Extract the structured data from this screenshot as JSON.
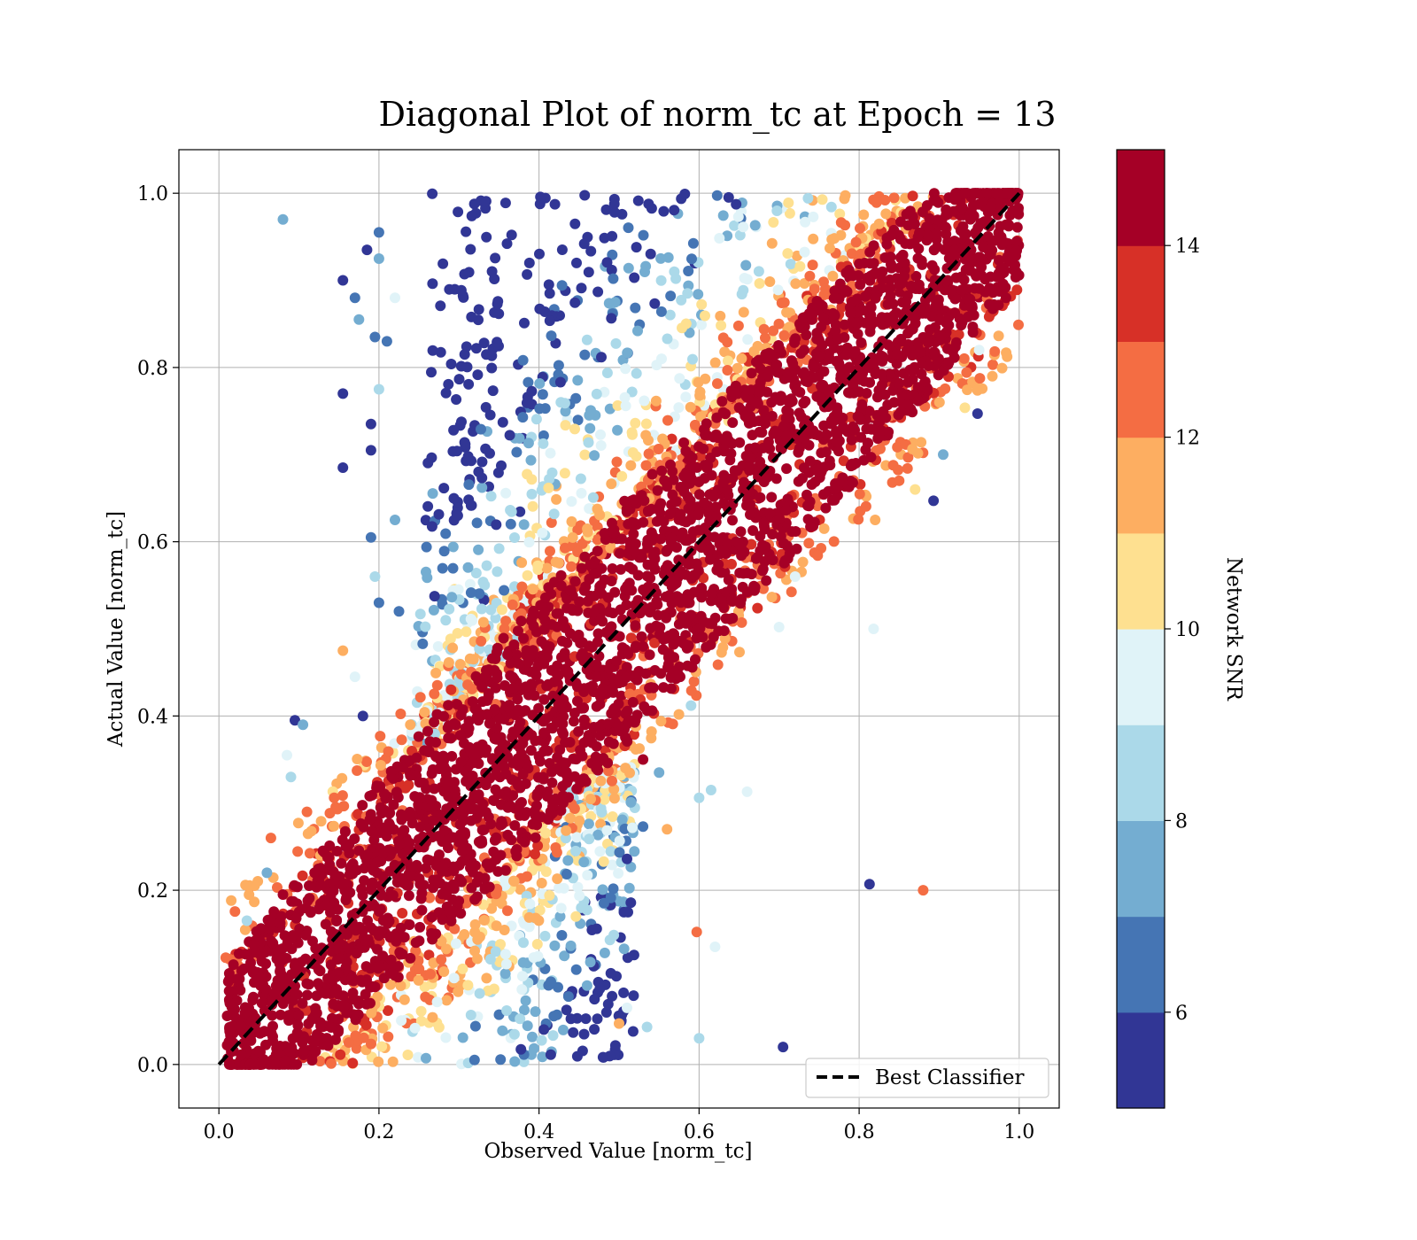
{
  "chart_data": {
    "type": "scatter",
    "title": "Diagonal Plot of norm_tc at Epoch = 13",
    "xlabel": "Observed Value [norm_tc]",
    "ylabel": "Actual Value [norm_tc]",
    "xlim": [
      -0.05,
      1.05
    ],
    "ylim": [
      -0.05,
      1.05
    ],
    "x_ticks": [
      "0.0",
      "0.2",
      "0.4",
      "0.6",
      "0.8",
      "1.0"
    ],
    "y_ticks": [
      "0.0",
      "0.2",
      "0.4",
      "0.6",
      "0.8",
      "1.0"
    ],
    "grid": true,
    "reference_line": {
      "label": "Best Classifier",
      "style": "dashed",
      "color": "#000000",
      "from": [
        0,
        0
      ],
      "to": [
        1,
        1
      ]
    },
    "legend": {
      "position": "lower-right",
      "entries": [
        "Best Classifier"
      ]
    },
    "colorbar": {
      "label": "Network SNR",
      "range": [
        5,
        15
      ],
      "ticks": [
        "6",
        "8",
        "10",
        "12",
        "14"
      ],
      "colors": [
        "#313695",
        "#4575b4",
        "#74add1",
        "#abd9e9",
        "#e0f3f8",
        "#fee090",
        "#fdae61",
        "#f46d43",
        "#d73027",
        "#a50026"
      ]
    },
    "points_description_note": "",
    "band": {
      "half_width_high_snr": 0.12,
      "x_min_low_snr": 0.25,
      "x_max_low_snr": 0.5
    },
    "outliers": [
      [
        0.08,
        0.97,
        7
      ],
      [
        0.17,
        0.88,
        6
      ],
      [
        0.155,
        0.9,
        5
      ],
      [
        0.155,
        0.77,
        5
      ],
      [
        0.155,
        0.685,
        5
      ],
      [
        0.19,
        0.735,
        5
      ],
      [
        0.19,
        0.705,
        5
      ],
      [
        0.21,
        0.83,
        6
      ],
      [
        0.2,
        0.775,
        8
      ],
      [
        0.095,
        0.395,
        5
      ],
      [
        0.105,
        0.39,
        7
      ],
      [
        0.09,
        0.33,
        8
      ],
      [
        0.085,
        0.355,
        9
      ],
      [
        0.11,
        0.29,
        12
      ],
      [
        0.065,
        0.26,
        12
      ],
      [
        0.155,
        0.475,
        11
      ],
      [
        0.17,
        0.445,
        9
      ],
      [
        0.06,
        0.22,
        7
      ],
      [
        0.08,
        0.195,
        14
      ],
      [
        0.035,
        0.165,
        8
      ],
      [
        0.948,
        0.747,
        5
      ],
      [
        0.893,
        0.647,
        5
      ],
      [
        0.87,
        0.66,
        10
      ],
      [
        0.88,
        0.2,
        12
      ],
      [
        0.813,
        0.207,
        5
      ],
      [
        0.705,
        0.02,
        5
      ],
      [
        0.6,
        0.03,
        8
      ],
      [
        0.597,
        0.152,
        12
      ],
      [
        0.62,
        0.135,
        9
      ],
      [
        0.535,
        0.043,
        8
      ],
      [
        0.6,
        0.306,
        8
      ],
      [
        0.615,
        0.315,
        8
      ],
      [
        0.66,
        0.313,
        9
      ],
      [
        0.818,
        0.5,
        9
      ],
      [
        0.72,
        0.56,
        9
      ],
      [
        0.56,
        0.27,
        11
      ],
      [
        0.53,
        0.273,
        6
      ],
      [
        0.55,
        0.335,
        7
      ],
      [
        0.53,
        0.35,
        14
      ],
      [
        0.51,
        0.236,
        5
      ],
      [
        0.51,
        0.065,
        9
      ],
      [
        0.5,
        0.047,
        11
      ],
      [
        0.59,
        0.412,
        8
      ],
      [
        0.7,
        0.502,
        9
      ],
      [
        0.905,
        0.7,
        7
      ],
      [
        0.95,
        0.82,
        9
      ],
      [
        0.82,
        0.625,
        11
      ],
      [
        0.85,
        0.67,
        12
      ],
      [
        0.22,
        0.88,
        9
      ],
      [
        0.2,
        0.955,
        6
      ],
      [
        0.2,
        0.925,
        7
      ],
      [
        0.185,
        0.935,
        5
      ],
      [
        0.175,
        0.855,
        7
      ],
      [
        0.195,
        0.835,
        6
      ],
      [
        0.2,
        0.53,
        6
      ],
      [
        0.195,
        0.56,
        8
      ],
      [
        0.19,
        0.605,
        6
      ],
      [
        0.22,
        0.625,
        7
      ],
      [
        0.225,
        0.52,
        6
      ],
      [
        0.18,
        0.4,
        5
      ]
    ]
  }
}
